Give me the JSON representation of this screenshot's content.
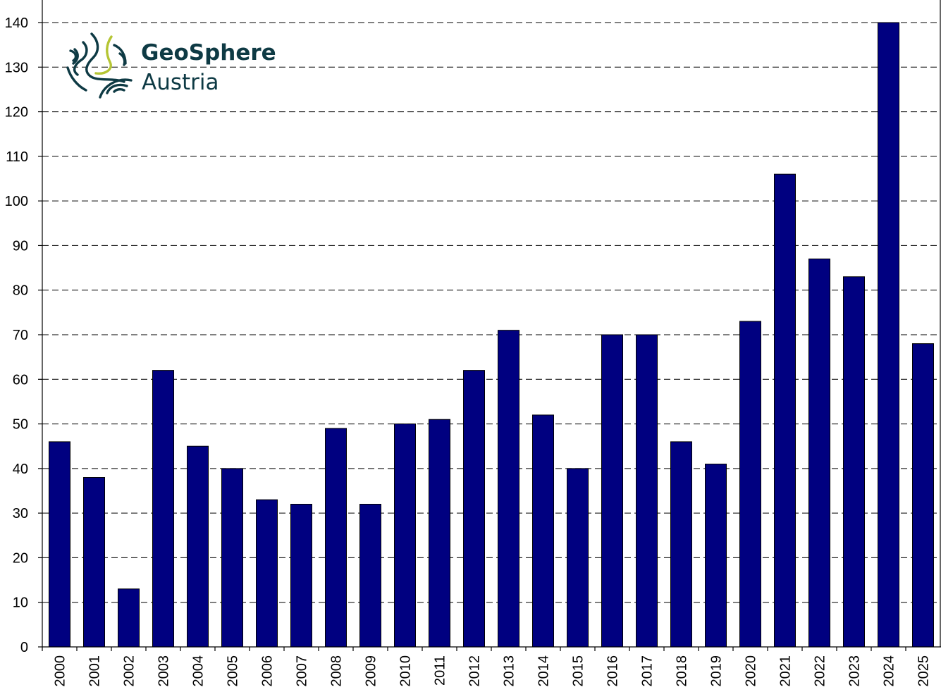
{
  "logo": {
    "line1": "GeoSphere",
    "line2": "Austria",
    "colors": {
      "text": "#0e3a44",
      "accent": "#b5c534"
    }
  },
  "chart_data": {
    "type": "bar",
    "categories": [
      "2000",
      "2001",
      "2002",
      "2003",
      "2004",
      "2005",
      "2006",
      "2007",
      "2008",
      "2009",
      "2010",
      "2011",
      "2012",
      "2013",
      "2014",
      "2015",
      "2016",
      "2017",
      "2018",
      "2019",
      "2020",
      "2021",
      "2022",
      "2023",
      "2024",
      "2025"
    ],
    "values": [
      46,
      38,
      13,
      62,
      45,
      40,
      33,
      32,
      49,
      32,
      50,
      51,
      62,
      71,
      52,
      40,
      70,
      70,
      46,
      41,
      73,
      106,
      87,
      83,
      140,
      68
    ],
    "title": "",
    "xlabel": "",
    "ylabel": "",
    "ylim": [
      0,
      140
    ],
    "yticks": [
      0,
      10,
      20,
      30,
      40,
      50,
      60,
      70,
      80,
      90,
      100,
      110,
      120,
      130,
      140
    ],
    "grid": "horizontal dashed",
    "bar_color": "#000080"
  }
}
